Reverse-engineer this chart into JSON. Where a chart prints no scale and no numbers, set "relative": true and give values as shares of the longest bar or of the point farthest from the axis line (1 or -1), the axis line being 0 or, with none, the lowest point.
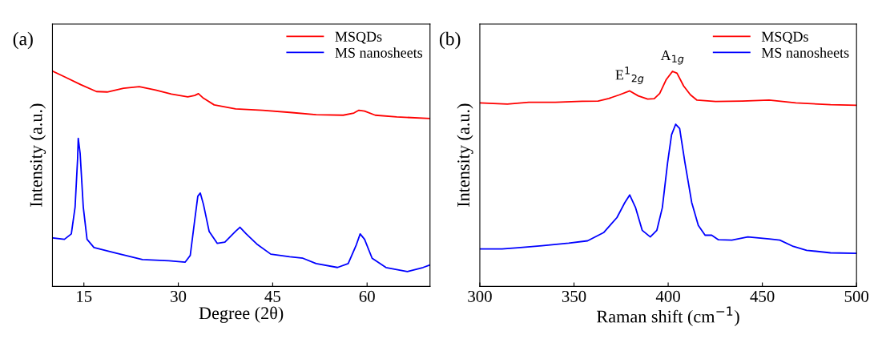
{
  "chart_data": [
    {
      "type": "line",
      "xlabel": "Degree (2θ)",
      "ylabel": "Intensity (a.u.)",
      "relative": true,
      "xlim": [
        10,
        70
      ],
      "xticks": [
        15,
        30,
        45,
        60
      ],
      "legend": "top right",
      "grid": false,
      "annotations": [
        "(a)"
      ],
      "series": [
        {
          "name": "MSQDs",
          "color": "#ff0000",
          "x": [
            10.1,
            11.9,
            14.5,
            17.0,
            18.7,
            21.3,
            23.8,
            26.4,
            28.9,
            31.5,
            32.6,
            33.2,
            34.0,
            35.7,
            39.1,
            43.4,
            47.7,
            51.9,
            56.2,
            57.9,
            58.7,
            59.6,
            61.3,
            64.7,
            70
          ],
          "values": [
            1.0,
            0.975,
            0.938,
            0.906,
            0.904,
            0.921,
            0.929,
            0.913,
            0.894,
            0.881,
            0.888,
            0.896,
            0.875,
            0.844,
            0.825,
            0.819,
            0.809,
            0.798,
            0.796,
            0.806,
            0.819,
            0.815,
            0.796,
            0.788,
            0.781
          ]
        },
        {
          "name": "MS nanosheets",
          "color": "#0000ff",
          "x": [
            10.1,
            11.9,
            13.0,
            13.6,
            14.0,
            14.1,
            14.4,
            14.9,
            15.5,
            16.6,
            20.0,
            24.3,
            28.5,
            31.1,
            31.9,
            32.6,
            33.1,
            33.5,
            34.0,
            34.9,
            36.2,
            37.4,
            39.1,
            39.8,
            40.8,
            42.6,
            44.7,
            47.7,
            49.8,
            51.9,
            55.3,
            57.0,
            58.3,
            58.9,
            59.6,
            60.8,
            63.0,
            66.4,
            68.9,
            70
          ],
          "values": [
            0.225,
            0.219,
            0.244,
            0.369,
            0.594,
            0.688,
            0.619,
            0.369,
            0.219,
            0.181,
            0.156,
            0.125,
            0.119,
            0.113,
            0.144,
            0.306,
            0.419,
            0.434,
            0.381,
            0.256,
            0.2,
            0.206,
            0.256,
            0.275,
            0.244,
            0.194,
            0.15,
            0.138,
            0.131,
            0.106,
            0.088,
            0.106,
            0.194,
            0.244,
            0.219,
            0.131,
            0.088,
            0.069,
            0.088,
            0.1
          ]
        }
      ]
    },
    {
      "type": "line",
      "xlabel": "Raman shift (cm$^{−1}$)",
      "ylabel": "Intensity (a.u.)",
      "relative": true,
      "xlim": [
        300,
        500
      ],
      "xticks": [
        300,
        350,
        400,
        450,
        500
      ],
      "legend": "top right",
      "grid": false,
      "annotations": [
        "(b)",
        {
          "text": "E$^{1}$$_{2g}$",
          "x": 379.6,
          "y": 0.909
        },
        {
          "text": "A$_{1g}$",
          "x": 402.3,
          "y": 1.0
        }
      ],
      "series": [
        {
          "name": "MSQDs",
          "color": "#ff0000",
          "x": [
            300,
            314.6,
            326.0,
            340.1,
            354.3,
            362.8,
            368.5,
            374.2,
            379.6,
            384.1,
            389.1,
            392.6,
            395.5,
            399.0,
            402.3,
            404.7,
            408.2,
            411.8,
            415.3,
            425.2,
            439.4,
            453.6,
            467.8,
            486.2,
            500
          ],
          "values": [
            0.853,
            0.848,
            0.856,
            0.856,
            0.861,
            0.862,
            0.874,
            0.891,
            0.909,
            0.886,
            0.871,
            0.873,
            0.897,
            0.962,
            1.0,
            0.991,
            0.932,
            0.891,
            0.866,
            0.86,
            0.862,
            0.866,
            0.853,
            0.845,
            0.842
          ]
        },
        {
          "name": "MS nanosheets",
          "color": "#0000ff",
          "x": [
            300,
            311.8,
            320.3,
            333.0,
            347.2,
            357.2,
            365.7,
            372.8,
            377.0,
            379.6,
            382.7,
            386.2,
            390.5,
            394.0,
            396.9,
            399.7,
            401.8,
            404.0,
            406.1,
            408.9,
            412.5,
            416.0,
            419.6,
            423.1,
            426.7,
            433.8,
            442.3,
            453.6,
            459.3,
            466.4,
            473.5,
            486.2,
            500
          ],
          "values": [
            0.174,
            0.174,
            0.18,
            0.189,
            0.201,
            0.212,
            0.25,
            0.32,
            0.39,
            0.425,
            0.366,
            0.261,
            0.23,
            0.261,
            0.366,
            0.576,
            0.705,
            0.754,
            0.734,
            0.576,
            0.39,
            0.284,
            0.238,
            0.238,
            0.217,
            0.215,
            0.23,
            0.221,
            0.215,
            0.186,
            0.168,
            0.156,
            0.154
          ]
        }
      ]
    }
  ]
}
